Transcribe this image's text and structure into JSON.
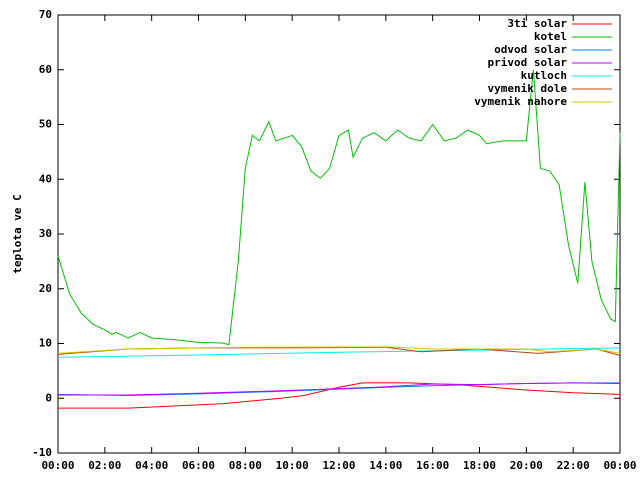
{
  "chart_data": {
    "type": "line",
    "ylabel": "teplota ve C",
    "xlim": [
      0,
      24
    ],
    "ylim": [
      -10,
      70
    ],
    "yticks": [
      -10,
      0,
      10,
      20,
      30,
      40,
      50,
      60,
      70
    ],
    "xticks": [
      {
        "value": 0,
        "label": "00:00"
      },
      {
        "value": 2,
        "label": "02:00"
      },
      {
        "value": 4,
        "label": "04:00"
      },
      {
        "value": 6,
        "label": "06:00"
      },
      {
        "value": 8,
        "label": "08:00"
      },
      {
        "value": 10,
        "label": "10:00"
      },
      {
        "value": 12,
        "label": "12:00"
      },
      {
        "value": 14,
        "label": "14:00"
      },
      {
        "value": 16,
        "label": "16:00"
      },
      {
        "value": 18,
        "label": "18:00"
      },
      {
        "value": 20,
        "label": "20:00"
      },
      {
        "value": 22,
        "label": "22:00"
      },
      {
        "value": 24,
        "label": "00:00"
      }
    ],
    "legend": "top-right",
    "series": [
      {
        "name": "3ti solar",
        "color": "#ff0000",
        "x": [
          0,
          3,
          7,
          9.5,
          10.5,
          12,
          13,
          15,
          17,
          20,
          22,
          24
        ],
        "values": [
          -1.8,
          -1.8,
          -1,
          0,
          0.5,
          2,
          2.8,
          2.8,
          2.5,
          1.5,
          1,
          0.7
        ]
      },
      {
        "name": "kotel",
        "color": "#00c000",
        "x": [
          0,
          0.5,
          1,
          1.5,
          2,
          2.3,
          2.5,
          3,
          3.5,
          4,
          5,
          6,
          7,
          7.3,
          7.7,
          8,
          8.3,
          8.6,
          9,
          9.3,
          10,
          10.4,
          10.8,
          11.2,
          11.6,
          12,
          12.4,
          12.6,
          13,
          13.5,
          14,
          14.5,
          15,
          15.5,
          16,
          16.5,
          17,
          17.5,
          18,
          18.3,
          19,
          19.5,
          20,
          20.3,
          20.6,
          21,
          21.4,
          21.8,
          22.2,
          22.5,
          22.8,
          23.2,
          23.6,
          23.8,
          24
        ],
        "values": [
          26,
          19,
          15.5,
          13.5,
          12.5,
          11.7,
          12,
          11,
          12,
          11,
          10.7,
          10.2,
          10.1,
          9.8,
          25,
          42,
          48,
          47,
          50.5,
          47,
          48,
          46,
          41.5,
          40.2,
          42,
          48,
          49,
          44,
          47.5,
          48.5,
          47,
          49,
          47.5,
          47,
          50,
          47,
          47.5,
          49,
          48,
          46.5,
          47,
          47,
          47,
          60,
          42,
          41.5,
          39,
          28,
          21,
          39.5,
          25,
          18,
          14.5,
          14,
          48.5
        ]
      },
      {
        "name": "odvod solar",
        "color": "#0080ff",
        "x": [
          0,
          3,
          6,
          9,
          11,
          14,
          16,
          18,
          20,
          22,
          24
        ],
        "values": [
          0.7,
          0.5,
          0.8,
          1.2,
          1.5,
          2,
          2.3,
          2.5,
          2.7,
          2.8,
          2.8
        ]
      },
      {
        "name": "privod solar",
        "color": "#c000ff",
        "x": [
          0,
          3,
          6,
          9,
          11,
          14,
          16,
          18,
          20,
          22,
          24
        ],
        "values": [
          0.6,
          0.6,
          0.9,
          1.3,
          1.6,
          2.1,
          2.6,
          2.5,
          2.7,
          2.8,
          2.7
        ]
      },
      {
        "name": "kutloch",
        "color": "#00eeee",
        "x": [
          0,
          6,
          12,
          18,
          24
        ],
        "values": [
          7.5,
          7.9,
          8.4,
          8.8,
          9.2
        ]
      },
      {
        "name": "vymenik dole",
        "color": "#c04000",
        "x": [
          0,
          3,
          6,
          10,
          14,
          15.5,
          18,
          20.5,
          23,
          24
        ],
        "values": [
          8,
          9,
          9.2,
          9.2,
          9.3,
          8.5,
          9,
          8.2,
          9,
          7.8
        ]
      },
      {
        "name": "vymenik nahore",
        "color": "#c8c800",
        "x": [
          0,
          3,
          8,
          14,
          16,
          20,
          21,
          23,
          24
        ],
        "values": [
          8.2,
          9,
          9.3,
          9.4,
          9,
          9,
          8.5,
          9,
          8.2
        ]
      }
    ]
  }
}
